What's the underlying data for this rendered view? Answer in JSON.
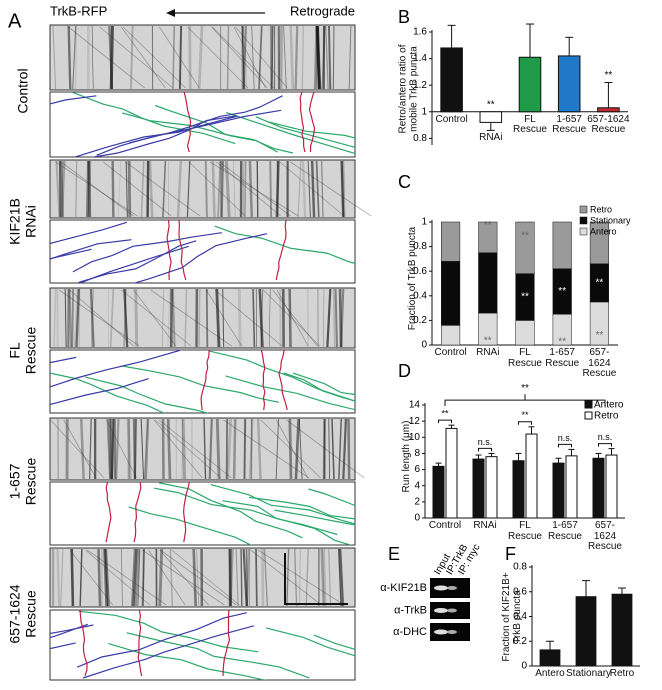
{
  "panel_letters": [
    "A",
    "B",
    "C",
    "D",
    "E",
    "F"
  ],
  "panel_a": {
    "header": "TrkB-RFP",
    "direction": "Retrograde",
    "rows": [
      {
        "label": [
          "Control"
        ]
      },
      {
        "label": [
          "KIF21B",
          "RNAi"
        ]
      },
      {
        "label": [
          "FL",
          "Rescue"
        ]
      },
      {
        "label": [
          "1-657",
          "Rescue"
        ]
      },
      {
        "label": [
          "657-1624",
          "Rescue"
        ]
      }
    ]
  },
  "chart_data": [
    {
      "type": "bar",
      "ylabel": "Retro/antero ratio of mobile TrkB puncta",
      "categories": [
        "Control",
        "RNAi",
        "FL Rescue",
        "1-657 Rescue",
        "657-1624 Rescue"
      ],
      "values": [
        1.48,
        0.92,
        1.41,
        1.42,
        1.03
      ],
      "errors": [
        0.17,
        0.06,
        0.25,
        0.14,
        0.19
      ],
      "colors": [
        "#111111",
        "#ffffff",
        "#1f9a48",
        "#1f78c8",
        "#c0282e"
      ],
      "base": 1,
      "significance": [
        null,
        "**",
        null,
        null,
        "**"
      ],
      "ylim": [
        0.75,
        1.6
      ],
      "yticks": [
        0.8,
        1,
        1.2,
        1.4,
        1.6
      ]
    },
    {
      "type": "stacked_bar",
      "ylabel": "Fraction of TrkB puncta",
      "categories": [
        "Control",
        "RNAi",
        "FL Rescue",
        "1-657 Rescue",
        "657-1624 Rescue"
      ],
      "series": [
        {
          "name": "Antero",
          "color": "#dcdcdc",
          "values": [
            0.16,
            0.26,
            0.2,
            0.25,
            0.35
          ],
          "significance": [
            null,
            "**",
            null,
            "**",
            "**"
          ]
        },
        {
          "name": "Stationary",
          "color": "#0a0a0a",
          "values": [
            0.52,
            0.49,
            0.38,
            0.37,
            0.31
          ],
          "significance": [
            null,
            null,
            "**",
            "**",
            "**"
          ]
        },
        {
          "name": "Retro",
          "color": "#9a9a9a",
          "values": [
            0.32,
            0.25,
            0.42,
            0.38,
            0.34
          ],
          "significance": [
            null,
            "**",
            "**",
            null,
            null
          ]
        }
      ],
      "ylim": [
        0,
        1
      ],
      "yticks": [
        0,
        0.2,
        0.4,
        0.6,
        0.8,
        1
      ]
    },
    {
      "type": "grouped_bar",
      "ylabel": "Run length (μm)",
      "categories": [
        "Control",
        "RNAi",
        "FL Rescue",
        "1-657 Rescue",
        "657-1624 Rescue"
      ],
      "series": [
        {
          "name": "Antero",
          "color": "#111111",
          "values": [
            6.4,
            7.3,
            7.1,
            6.8,
            7.4
          ],
          "errors": [
            0.4,
            0.5,
            0.9,
            0.6,
            0.6
          ]
        },
        {
          "name": "Retro",
          "color": "#ffffff",
          "values": [
            11.1,
            7.6,
            10.4,
            7.7,
            7.8
          ],
          "errors": [
            0.4,
            0.4,
            0.9,
            0.8,
            0.8
          ]
        }
      ],
      "pair_significance": [
        "**",
        "n.s.",
        "**",
        "n.s.",
        "n.s."
      ],
      "group_significance": "**",
      "ylim": [
        0,
        14
      ],
      "yticks": [
        0,
        2,
        4,
        6,
        8,
        10,
        12,
        14
      ]
    },
    {
      "type": "bar",
      "ylabel": "Fraction of KIF21B+ TrkB puncta",
      "categories": [
        "Antero",
        "Stationary",
        "Retro"
      ],
      "values": [
        0.13,
        0.56,
        0.58
      ],
      "errors": [
        0.07,
        0.13,
        0.05
      ],
      "color": "#111111",
      "ylim": [
        0,
        0.8
      ],
      "yticks": [
        0,
        0.2,
        0.4,
        0.6,
        0.8
      ]
    }
  ],
  "panel_e": {
    "columns": [
      "Input",
      "IP:TrkB",
      "IP: myc"
    ],
    "rows": [
      "α-KIF21B",
      "α-TrkB",
      "α-DHC"
    ]
  }
}
